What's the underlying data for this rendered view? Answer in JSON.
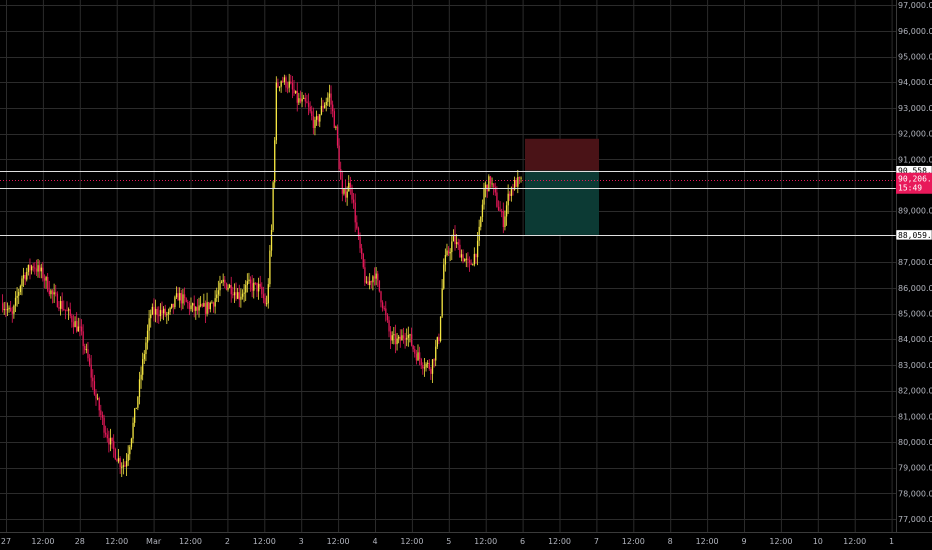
{
  "chart_data": {
    "type": "candlestick",
    "xlabel": "",
    "ylabel": "",
    "ylim": [
      76500,
      97200
    ],
    "grid": true,
    "x_ticks": [
      "27",
      "12:00",
      "28",
      "12:00",
      "Mar",
      "12:00",
      "2",
      "12:00",
      "3",
      "12:00",
      "4",
      "12:00",
      "5",
      "12:00",
      "6",
      "12:00",
      "7",
      "12:00",
      "8",
      "12:00",
      "9",
      "12:00",
      "10",
      "12:00",
      "1"
    ],
    "y_ticks": [
      {
        "value": 77000,
        "label": "77,000.00"
      },
      {
        "value": 78000,
        "label": "78,000.00"
      },
      {
        "value": 79000,
        "label": "79,000.00"
      },
      {
        "value": 80000,
        "label": "80,000.00"
      },
      {
        "value": 81000,
        "label": "81,000.00"
      },
      {
        "value": 82000,
        "label": "82,000.00"
      },
      {
        "value": 83000,
        "label": "83,000.00"
      },
      {
        "value": 84000,
        "label": "84,000.00"
      },
      {
        "value": 85000,
        "label": "85,000.00"
      },
      {
        "value": 86000,
        "label": "86,000.00"
      },
      {
        "value": 87000,
        "label": "87,000.00"
      },
      {
        "value": 89000,
        "label": "89,000.00"
      },
      {
        "value": 91000,
        "label": "91,000.00"
      },
      {
        "value": 92000,
        "label": "92,000.00"
      },
      {
        "value": 93000,
        "label": "93,000.00"
      },
      {
        "value": 94000,
        "label": "94,000.00"
      },
      {
        "value": 95000,
        "label": "95,000.00"
      },
      {
        "value": 96000,
        "label": "96,000.00"
      },
      {
        "value": 97000,
        "label": "97,000.00"
      }
    ],
    "horizontal_lines": [
      {
        "value": 90558.94,
        "label": "90,558.94"
      },
      {
        "value": 89886.03,
        "label": "89,886.03"
      },
      {
        "value": 88059.56,
        "label": "88,059.56"
      }
    ],
    "current_price": {
      "value": 90206.07,
      "label": "90,206.07",
      "countdown": "15:49"
    },
    "position_zones": [
      {
        "kind": "stop",
        "from": 90558.94,
        "to": 91800,
        "color": "#4a1317"
      },
      {
        "kind": "target",
        "from": 88059.56,
        "to": 90558.94,
        "color": "#0c3a34"
      }
    ],
    "colors": {
      "up": "#f5e642",
      "down": "#e8195a",
      "grid": "#2b2b2b",
      "hline": "#e0e0e0",
      "price_badge": "#e8195a"
    },
    "anchors": [
      [
        0,
        85400
      ],
      [
        6,
        84900
      ],
      [
        12,
        86400
      ],
      [
        19,
        86900
      ],
      [
        25,
        86500
      ],
      [
        31,
        85700
      ],
      [
        37,
        85300
      ],
      [
        43,
        84800
      ],
      [
        48,
        84300
      ],
      [
        53,
        83200
      ],
      [
        58,
        81700
      ],
      [
        63,
        80600
      ],
      [
        68,
        79800
      ],
      [
        73,
        79200
      ],
      [
        76,
        79100
      ],
      [
        80,
        80300
      ],
      [
        84,
        81800
      ],
      [
        88,
        83500
      ],
      [
        92,
        85000
      ],
      [
        97,
        85100
      ],
      [
        103,
        84900
      ],
      [
        109,
        85700
      ],
      [
        114,
        85400
      ],
      [
        120,
        85100
      ],
      [
        126,
        85200
      ],
      [
        131,
        85500
      ],
      [
        137,
        86200
      ],
      [
        142,
        86000
      ],
      [
        147,
        85700
      ],
      [
        152,
        86100
      ],
      [
        159,
        86000
      ],
      [
        164,
        85300
      ],
      [
        167,
        88200
      ],
      [
        170,
        93800
      ],
      [
        173,
        94100
      ],
      [
        178,
        93900
      ],
      [
        183,
        93300
      ],
      [
        189,
        93100
      ],
      [
        194,
        92300
      ],
      [
        199,
        93100
      ],
      [
        203,
        93500
      ],
      [
        207,
        92100
      ],
      [
        211,
        89500
      ],
      [
        216,
        90100
      ],
      [
        221,
        87800
      ],
      [
        226,
        86000
      ],
      [
        231,
        86600
      ],
      [
        236,
        85400
      ],
      [
        241,
        84000
      ],
      [
        246,
        83900
      ],
      [
        251,
        84300
      ],
      [
        256,
        83500
      ],
      [
        261,
        83100
      ],
      [
        266,
        82900
      ],
      [
        271,
        84100
      ],
      [
        274,
        86900
      ],
      [
        280,
        87900
      ],
      [
        285,
        87300
      ],
      [
        290,
        86800
      ],
      [
        295,
        87600
      ],
      [
        299,
        89800
      ],
      [
        303,
        90200
      ],
      [
        307,
        89300
      ],
      [
        311,
        88600
      ],
      [
        315,
        89800
      ],
      [
        319,
        90100
      ],
      [
        322,
        90100
      ]
    ]
  }
}
